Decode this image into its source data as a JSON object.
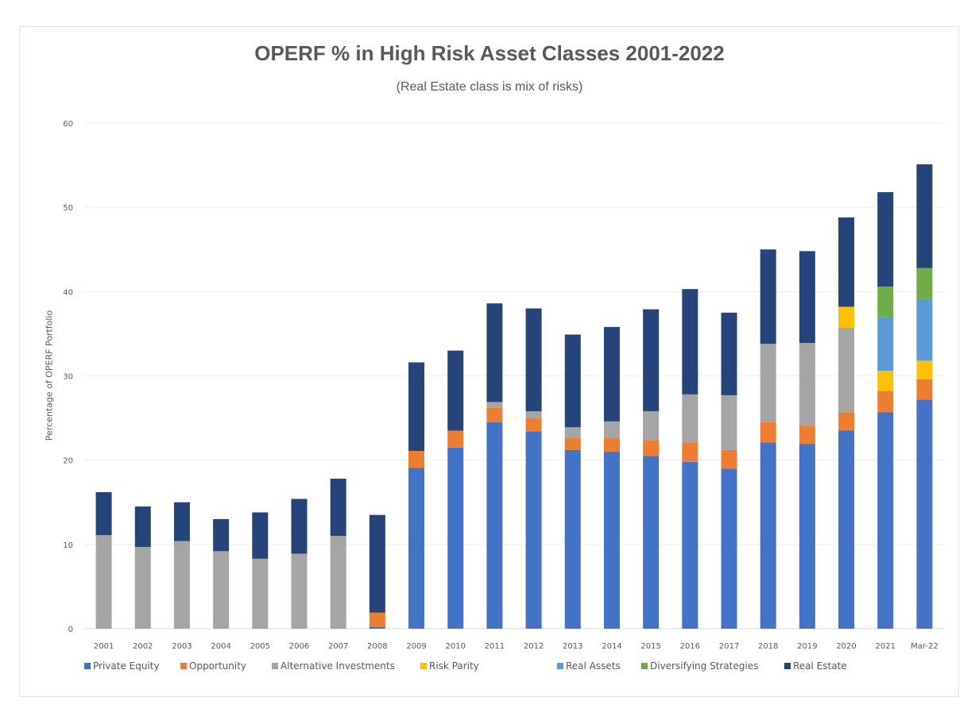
{
  "chart_data": {
    "type": "bar",
    "stacked": true,
    "title": "OPERF % in High Risk Asset Classes 2001-2022",
    "subtitle": "(Real Estate class is mix of risks)",
    "xlabel": "",
    "ylabel": "Percentage of OPERF Portfolio",
    "ylim": [
      0,
      60
    ],
    "yticks": [
      0,
      10,
      20,
      30,
      40,
      50,
      60
    ],
    "grid": true,
    "legend_position": "bottom",
    "categories": [
      "2001",
      "2002",
      "2003",
      "2004",
      "2005",
      "2006",
      "2007",
      "2008",
      "2009",
      "2010",
      "2011",
      "2012",
      "2013",
      "2014",
      "2015",
      "2016",
      "2017",
      "2018",
      "2019",
      "2020",
      "2021",
      "Mar-22"
    ],
    "series": [
      {
        "name": "Private Equity",
        "color": "#4472C4",
        "values": [
          0,
          0,
          0,
          0,
          0,
          0,
          0,
          0.2,
          19.1,
          21.5,
          24.5,
          23.4,
          21.2,
          21.0,
          20.5,
          19.8,
          19.0,
          22.1,
          21.9,
          23.5,
          25.7,
          27.2
        ]
      },
      {
        "name": "Opportunity",
        "color": "#ED7D31",
        "values": [
          0,
          0,
          0,
          0,
          0,
          0,
          0,
          1.7,
          2.0,
          2.0,
          1.7,
          1.6,
          1.4,
          1.6,
          1.9,
          2.3,
          2.2,
          2.4,
          2.2,
          2.2,
          2.5,
          2.4
        ]
      },
      {
        "name": "Alternative Investments",
        "color": "#A5A5A5",
        "values": [
          11.1,
          9.7,
          10.4,
          9.2,
          8.3,
          8.9,
          11.0,
          0,
          0,
          0,
          0.7,
          0.8,
          1.3,
          2.0,
          3.4,
          5.7,
          6.5,
          9.3,
          9.8,
          10.0,
          0,
          0
        ]
      },
      {
        "name": "Risk Parity",
        "color": "#FFC000",
        "values": [
          0,
          0,
          0,
          0,
          0,
          0,
          0,
          0,
          0,
          0,
          0,
          0,
          0,
          0,
          0,
          0,
          0,
          0,
          0,
          2.5,
          2.4,
          2.2
        ]
      },
      {
        "name": "Real Assets",
        "color": "#5B9BD5",
        "values": [
          0,
          0,
          0,
          0,
          0,
          0,
          0,
          0,
          0,
          0,
          0,
          0,
          0,
          0,
          0,
          0,
          0,
          0,
          0,
          0,
          6.4,
          7.3
        ]
      },
      {
        "name": "Diversifying Strategies",
        "color": "#70AD47",
        "values": [
          0,
          0,
          0,
          0,
          0,
          0,
          0,
          0,
          0,
          0,
          0,
          0,
          0,
          0,
          0,
          0,
          0,
          0,
          0,
          0,
          3.6,
          3.7
        ]
      },
      {
        "name": "Real Estate",
        "color": "#264478",
        "values": [
          5.1,
          4.8,
          4.6,
          3.8,
          5.5,
          6.5,
          6.8,
          11.6,
          10.5,
          9.5,
          11.7,
          12.2,
          11.0,
          11.2,
          12.1,
          12.5,
          9.8,
          11.2,
          10.9,
          10.6,
          11.2,
          12.3
        ]
      }
    ]
  }
}
